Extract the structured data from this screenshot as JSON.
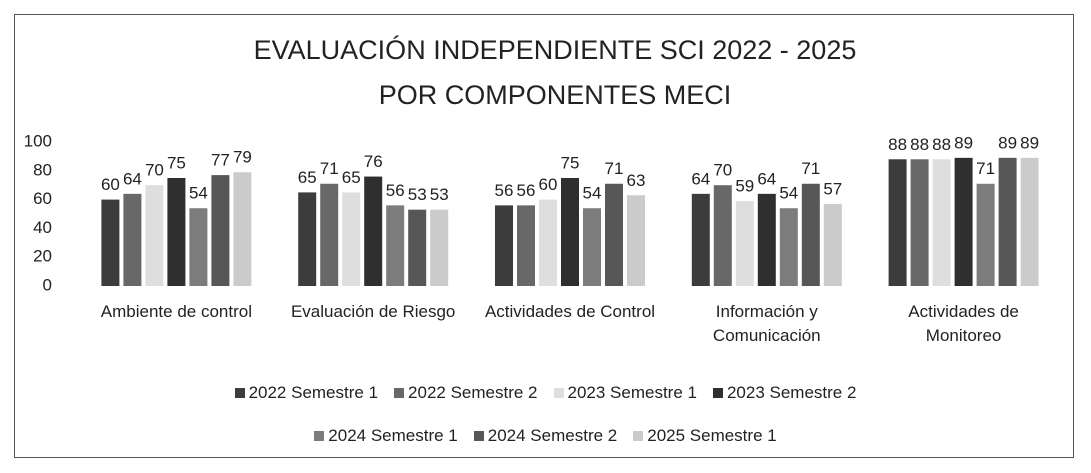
{
  "chart_data": {
    "type": "bar",
    "title": "EVALUACIÓN INDEPENDIENTE SCI 2022 - 2025",
    "subtitle": "POR COMPONENTES MECI",
    "categories": [
      "Ambiente de control",
      "Evaluación de Riesgo",
      "Actividades de Control",
      "Información y Comunicación",
      "Actividades de Monitoreo"
    ],
    "series": [
      {
        "name": "2022 Semestre 1",
        "color": "#3c3c3c",
        "values": [
          60,
          65,
          56,
          64,
          88
        ]
      },
      {
        "name": "2022 Semestre 2",
        "color": "#686868",
        "values": [
          64,
          71,
          56,
          70,
          88
        ]
      },
      {
        "name": "2023 Semestre 1",
        "color": "#dedede",
        "values": [
          70,
          65,
          60,
          59,
          88
        ]
      },
      {
        "name": "2023 Semestre 2",
        "color": "#2f2f2f",
        "values": [
          75,
          76,
          75,
          64,
          89
        ]
      },
      {
        "name": "2024 Semestre 1",
        "color": "#7c7c7c",
        "values": [
          54,
          56,
          54,
          54,
          71
        ]
      },
      {
        "name": "2024 Semestre 2",
        "color": "#575757",
        "values": [
          77,
          53,
          71,
          71,
          89
        ]
      },
      {
        "name": "2025 Semestre 1",
        "color": "#cbcbcb",
        "values": [
          79,
          53,
          63,
          57,
          89
        ]
      }
    ],
    "ylim": [
      0,
      100
    ],
    "yticks": [
      0,
      20,
      40,
      60,
      80,
      100
    ],
    "grid": false
  }
}
